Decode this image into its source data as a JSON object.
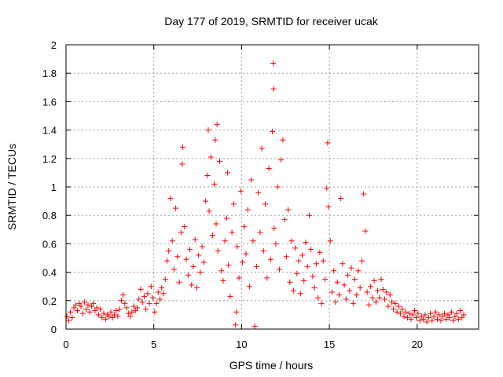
{
  "chart_data": {
    "type": "scatter",
    "title": "Day 177 of 2019, SRMTID for receiver ucak",
    "xlabel": "GPS time / hours",
    "ylabel": "SRMTID / TECUs",
    "xlim": [
      0,
      23.5
    ],
    "ylim": [
      0,
      2
    ],
    "xticks": [
      0,
      5,
      10,
      15,
      20
    ],
    "yticks": [
      0,
      0.2,
      0.4,
      0.6,
      0.8,
      1,
      1.2,
      1.4,
      1.6,
      1.8,
      2
    ],
    "ytick_labels": [
      "0",
      "0.2",
      "0.4",
      "0.6",
      "0.8",
      "1",
      "1.2",
      "1.4",
      "1.6",
      "1.8",
      "2"
    ],
    "grid": true,
    "marker": "+",
    "color": "#ff0000",
    "series": [
      {
        "name": "SRMTID",
        "points": [
          [
            0.05,
            0.09
          ],
          [
            0.15,
            0.06
          ],
          [
            0.25,
            0.12
          ],
          [
            0.35,
            0.08
          ],
          [
            0.45,
            0.15
          ],
          [
            0.55,
            0.17
          ],
          [
            0.65,
            0.13
          ],
          [
            0.75,
            0.18
          ],
          [
            0.85,
            0.16
          ],
          [
            0.95,
            0.11
          ],
          [
            1.05,
            0.19
          ],
          [
            1.15,
            0.14
          ],
          [
            1.25,
            0.17
          ],
          [
            1.35,
            0.12
          ],
          [
            1.45,
            0.16
          ],
          [
            1.55,
            0.18
          ],
          [
            1.65,
            0.13
          ],
          [
            1.75,
            0.15
          ],
          [
            1.85,
            0.1
          ],
          [
            1.95,
            0.14
          ],
          [
            2.05,
            0.08
          ],
          [
            2.15,
            0.11
          ],
          [
            2.25,
            0.07
          ],
          [
            2.35,
            0.1
          ],
          [
            2.45,
            0.09
          ],
          [
            2.55,
            0.12
          ],
          [
            2.65,
            0.08
          ],
          [
            2.75,
            0.1
          ],
          [
            2.85,
            0.13
          ],
          [
            2.95,
            0.09
          ],
          [
            3.05,
            0.14
          ],
          [
            3.15,
            0.2
          ],
          [
            3.25,
            0.24
          ],
          [
            3.35,
            0.18
          ],
          [
            3.45,
            0.15
          ],
          [
            3.55,
            0.11
          ],
          [
            3.65,
            0.09
          ],
          [
            3.75,
            0.12
          ],
          [
            3.85,
            0.16
          ],
          [
            3.95,
            0.13
          ],
          [
            4.05,
            0.15
          ],
          [
            4.15,
            0.21
          ],
          [
            4.25,
            0.28
          ],
          [
            4.35,
            0.19
          ],
          [
            4.45,
            0.23
          ],
          [
            4.55,
            0.14
          ],
          [
            4.65,
            0.25
          ],
          [
            4.75,
            0.18
          ],
          [
            4.85,
            0.3
          ],
          [
            4.95,
            0.22
          ],
          [
            5.05,
            0.12
          ],
          [
            5.15,
            0.18
          ],
          [
            5.25,
            0.26
          ],
          [
            5.35,
            0.21
          ],
          [
            5.45,
            0.29
          ],
          [
            5.55,
            0.25
          ],
          [
            5.65,
            0.35
          ],
          [
            5.75,
            0.48
          ],
          [
            5.85,
            0.55
          ],
          [
            5.95,
            0.92
          ],
          [
            6.05,
            0.62
          ],
          [
            6.15,
            0.42
          ],
          [
            6.25,
            0.85
          ],
          [
            6.35,
            0.51
          ],
          [
            6.45,
            0.33
          ],
          [
            6.55,
            0.68
          ],
          [
            6.62,
            1.16
          ],
          [
            6.65,
            1.28
          ],
          [
            6.75,
            0.72
          ],
          [
            6.85,
            0.49
          ],
          [
            6.95,
            0.38
          ],
          [
            7.05,
            0.56
          ],
          [
            7.15,
            0.31
          ],
          [
            7.25,
            0.44
          ],
          [
            7.35,
            0.63
          ],
          [
            7.45,
            0.29
          ],
          [
            7.55,
            0.52
          ],
          [
            7.65,
            0.4
          ],
          [
            7.75,
            0.58
          ],
          [
            7.85,
            0.47
          ],
          [
            7.95,
            0.9
          ],
          [
            8.05,
            1.08
          ],
          [
            8.1,
            1.4
          ],
          [
            8.15,
            0.83
          ],
          [
            8.25,
            1.21
          ],
          [
            8.35,
            0.66
          ],
          [
            8.45,
            1.02
          ],
          [
            8.5,
            1.33
          ],
          [
            8.55,
            0.74
          ],
          [
            8.6,
            1.44
          ],
          [
            8.65,
            0.55
          ],
          [
            8.75,
            1.18
          ],
          [
            8.85,
            0.41
          ],
          [
            8.95,
            0.34
          ],
          [
            9.05,
            0.62
          ],
          [
            9.15,
            0.78
          ],
          [
            9.2,
            1.1
          ],
          [
            9.25,
            0.45
          ],
          [
            9.35,
            0.23
          ],
          [
            9.45,
            0.68
          ],
          [
            9.55,
            0.88
          ],
          [
            9.65,
            0.03
          ],
          [
            9.7,
            0.12
          ],
          [
            9.75,
            0.58
          ],
          [
            9.85,
            0.36
          ],
          [
            9.95,
            0.97
          ],
          [
            10.05,
            0.47
          ],
          [
            10.15,
            0.72
          ],
          [
            10.25,
            0.53
          ],
          [
            10.35,
            0.84
          ],
          [
            10.45,
            0.3
          ],
          [
            10.55,
            1.05
          ],
          [
            10.65,
            0.62
          ],
          [
            10.75,
            0.02
          ],
          [
            10.85,
            0.44
          ],
          [
            10.95,
            0.96
          ],
          [
            11.05,
            0.68
          ],
          [
            11.15,
            1.27
          ],
          [
            11.25,
            0.55
          ],
          [
            11.35,
            0.88
          ],
          [
            11.45,
            0.36
          ],
          [
            11.55,
            1.13
          ],
          [
            11.65,
            0.49
          ],
          [
            11.75,
            1.39
          ],
          [
            11.8,
            1.87
          ],
          [
            11.82,
            1.69
          ],
          [
            11.85,
            0.71
          ],
          [
            11.95,
            0.6
          ],
          [
            12.05,
            1.0
          ],
          [
            12.15,
            0.42
          ],
          [
            12.25,
            1.19
          ],
          [
            12.35,
            1.33
          ],
          [
            12.45,
            0.77
          ],
          [
            12.55,
            0.51
          ],
          [
            12.65,
            0.84
          ],
          [
            12.75,
            0.33
          ],
          [
            12.85,
            0.62
          ],
          [
            12.95,
            0.27
          ],
          [
            13.05,
            0.57
          ],
          [
            13.15,
            0.39
          ],
          [
            13.25,
            0.48
          ],
          [
            13.35,
            0.25
          ],
          [
            13.45,
            0.52
          ],
          [
            13.55,
            0.34
          ],
          [
            13.65,
            0.61
          ],
          [
            13.75,
            0.44
          ],
          [
            13.85,
            0.8
          ],
          [
            13.95,
            0.56
          ],
          [
            14.05,
            0.37
          ],
          [
            14.15,
            0.29
          ],
          [
            14.25,
            0.46
          ],
          [
            14.35,
            0.22
          ],
          [
            14.45,
            0.54
          ],
          [
            14.55,
            0.18
          ],
          [
            14.65,
            0.48
          ],
          [
            14.75,
            0.35
          ],
          [
            14.85,
            0.99
          ],
          [
            14.9,
            1.31
          ],
          [
            14.95,
            0.86
          ],
          [
            15.05,
            0.62
          ],
          [
            15.15,
            0.26
          ],
          [
            15.25,
            0.41
          ],
          [
            15.35,
            0.19
          ],
          [
            15.45,
            0.33
          ],
          [
            15.55,
            0.24
          ],
          [
            15.65,
            0.92
          ],
          [
            15.75,
            0.46
          ],
          [
            15.85,
            0.31
          ],
          [
            15.95,
            0.21
          ],
          [
            16.05,
            0.38
          ],
          [
            16.15,
            0.27
          ],
          [
            16.25,
            0.43
          ],
          [
            16.35,
            0.18
          ],
          [
            16.45,
            0.35
          ],
          [
            16.55,
            0.24
          ],
          [
            16.65,
            0.41
          ],
          [
            16.75,
            0.29
          ],
          [
            16.85,
            0.48
          ],
          [
            16.95,
            0.95
          ],
          [
            17.05,
            0.69
          ],
          [
            17.15,
            0.26
          ],
          [
            17.25,
            0.17
          ],
          [
            17.35,
            0.3
          ],
          [
            17.45,
            0.22
          ],
          [
            17.55,
            0.34
          ],
          [
            17.65,
            0.19
          ],
          [
            17.75,
            0.27
          ],
          [
            17.85,
            0.22
          ],
          [
            17.95,
            0.35
          ],
          [
            18.05,
            0.28
          ],
          [
            18.15,
            0.21
          ],
          [
            18.25,
            0.26
          ],
          [
            18.35,
            0.16
          ],
          [
            18.45,
            0.24
          ],
          [
            18.55,
            0.19
          ],
          [
            18.65,
            0.14
          ],
          [
            18.75,
            0.18
          ],
          [
            18.85,
            0.12
          ],
          [
            18.95,
            0.16
          ],
          [
            19.05,
            0.11
          ],
          [
            19.15,
            0.14
          ],
          [
            19.25,
            0.09
          ],
          [
            19.35,
            0.12
          ],
          [
            19.45,
            0.08
          ],
          [
            19.55,
            0.11
          ],
          [
            19.65,
            0.07
          ],
          [
            19.75,
            0.1
          ],
          [
            19.85,
            0.13
          ],
          [
            19.95,
            0.08
          ],
          [
            20.05,
            0.11
          ],
          [
            20.15,
            0.06
          ],
          [
            20.25,
            0.09
          ],
          [
            20.35,
            0.07
          ],
          [
            20.45,
            0.1
          ],
          [
            20.55,
            0.05
          ],
          [
            20.65,
            0.08
          ],
          [
            20.75,
            0.11
          ],
          [
            20.85,
            0.06
          ],
          [
            20.95,
            0.09
          ],
          [
            21.05,
            0.12
          ],
          [
            21.15,
            0.07
          ],
          [
            21.25,
            0.1
          ],
          [
            21.35,
            0.06
          ],
          [
            21.45,
            0.09
          ],
          [
            21.55,
            0.11
          ],
          [
            21.65,
            0.07
          ],
          [
            21.75,
            0.1
          ],
          [
            21.85,
            0.08
          ],
          [
            21.95,
            0.12
          ],
          [
            22.05,
            0.06
          ],
          [
            22.15,
            0.09
          ],
          [
            22.25,
            0.11
          ],
          [
            22.35,
            0.07
          ],
          [
            22.45,
            0.13
          ],
          [
            22.55,
            0.08
          ],
          [
            22.65,
            0.1
          ]
        ]
      }
    ]
  }
}
